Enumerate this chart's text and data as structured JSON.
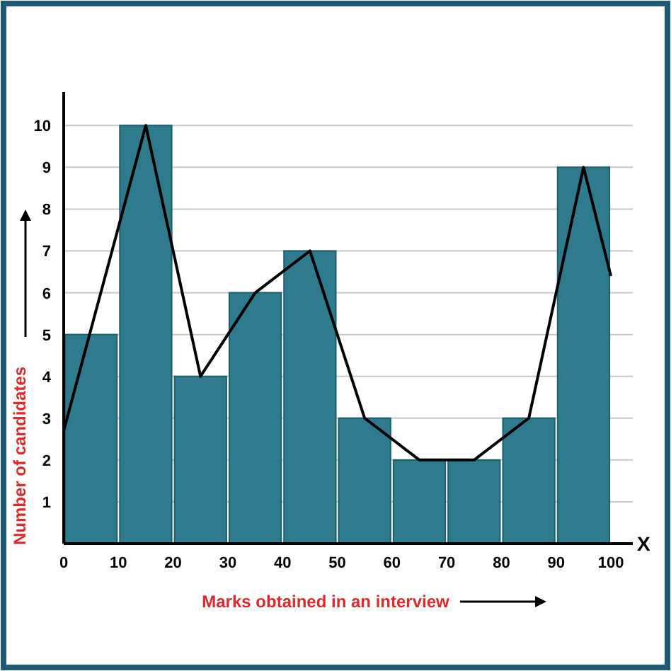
{
  "chart_data": {
    "type": "histogram",
    "xlabel": "Marks obtained in an interview",
    "ylabel": "Number of candidates",
    "annotations": [
      "X"
    ],
    "bins": [
      0,
      10,
      20,
      30,
      40,
      50,
      60,
      70,
      80,
      90,
      100
    ],
    "values": [
      5,
      10,
      4,
      6,
      7,
      3,
      2,
      2,
      3,
      9
    ],
    "color": "#2e7b8d",
    "series": [
      {
        "type": "line",
        "x": [
          0,
          15,
          25,
          35,
          45,
          55,
          65,
          75,
          85,
          95,
          100
        ],
        "values": [
          2.7,
          10,
          4,
          6,
          7,
          3,
          2,
          2,
          3,
          9,
          6.4
        ],
        "color": "#000000"
      }
    ],
    "xlim": [
      0,
      104
    ],
    "xticks": [
      0,
      10,
      20,
      30,
      40,
      50,
      60,
      70,
      80,
      90,
      100
    ],
    "ylim": [
      0,
      10.8
    ],
    "yticks": [
      1,
      2,
      3,
      4,
      5,
      6,
      7,
      8,
      9,
      10
    ],
    "grid": "y"
  }
}
